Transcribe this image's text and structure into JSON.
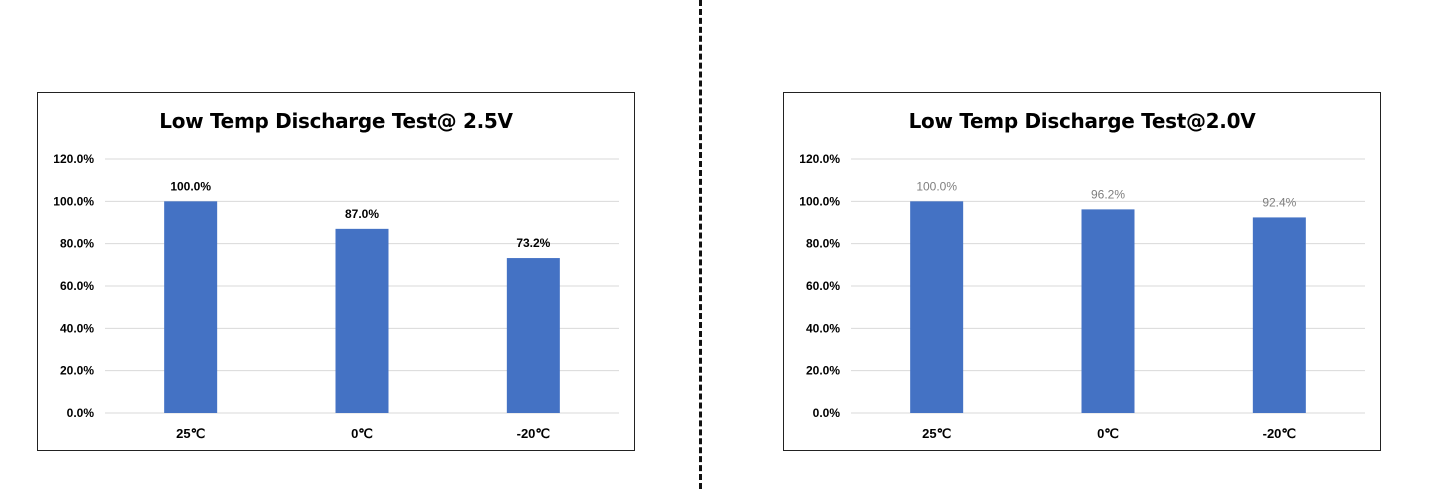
{
  "chart_data": [
    {
      "type": "bar",
      "title": "Low Temp Discharge Test@ 2.5V",
      "categories": [
        "25℃",
        "0℃",
        "-20℃"
      ],
      "values": [
        100.0,
        87.0,
        73.2
      ],
      "data_labels": [
        "100.0%",
        "87.0%",
        "73.2%"
      ],
      "y_ticks": [
        "0.0%",
        "20.0%",
        "40.0%",
        "60.0%",
        "80.0%",
        "100.0%",
        "120.0%"
      ],
      "ylim": [
        0,
        120
      ],
      "grid": true,
      "legend": "none",
      "bar_color": "#4472c4",
      "label_style": "bold"
    },
    {
      "type": "bar",
      "title": "Low Temp Discharge Test@2.0V",
      "categories": [
        "25℃",
        "0℃",
        "-20℃"
      ],
      "values": [
        100.0,
        96.2,
        92.4
      ],
      "data_labels": [
        "100.0%",
        "96.2%",
        "92.4%"
      ],
      "y_ticks": [
        "0.0%",
        "20.0%",
        "40.0%",
        "60.0%",
        "80.0%",
        "100.0%",
        "120.0%"
      ],
      "ylim": [
        0,
        120
      ],
      "grid": true,
      "legend": "none",
      "bar_color": "#4472c4",
      "label_style": "light"
    }
  ]
}
